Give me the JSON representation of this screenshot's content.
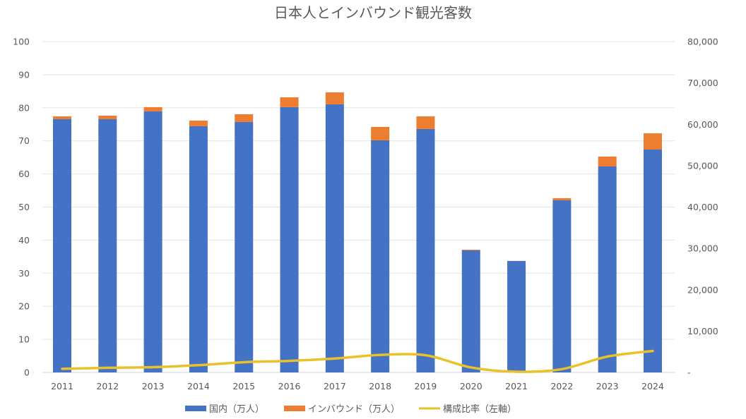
{
  "chart_data": {
    "type": "bar",
    "stacked": true,
    "title": "日本人とインバウンド観光客数",
    "categories": [
      "2011",
      "2012",
      "2013",
      "2014",
      "2015",
      "2016",
      "2017",
      "2018",
      "2019",
      "2020",
      "2021",
      "2022",
      "2023",
      "2024"
    ],
    "series": [
      {
        "name": "国内（万人）",
        "kind": "bar",
        "axis": "right",
        "color": "#4472C4",
        "values": [
          61240,
          61240,
          63120,
          59540,
          60560,
          64150,
          64830,
          56130,
          58860,
          29510,
          26950,
          41630,
          49810,
          53910
        ]
      },
      {
        "name": "インバウンド（万人）",
        "kind": "bar",
        "axis": "right",
        "color": "#ED7D31",
        "values": [
          690,
          860,
          1030,
          1360,
          1880,
          2380,
          2900,
          3240,
          3070,
          170,
          20,
          510,
          2390,
          3920
        ]
      },
      {
        "name": "構成比率（左軸）",
        "kind": "line",
        "axis": "left",
        "color": "#E8C228",
        "values": [
          1.1,
          1.4,
          1.6,
          2.2,
          3.1,
          3.5,
          4.2,
          5.3,
          5.2,
          1.5,
          0.2,
          1.0,
          4.8,
          6.5
        ]
      }
    ],
    "y_left": {
      "min": 0,
      "max": 100,
      "ticks": [
        "0",
        "10",
        "20",
        "30",
        "40",
        "50",
        "60",
        "70",
        "80",
        "90",
        "100"
      ]
    },
    "y_right": {
      "min": 0,
      "max": 80000,
      "ticks": [
        "-",
        "10,000",
        "20,000",
        "30,000",
        "40,000",
        "50,000",
        "60,000",
        "70,000",
        "80,000"
      ]
    },
    "grid": true,
    "legend": "bottom"
  }
}
